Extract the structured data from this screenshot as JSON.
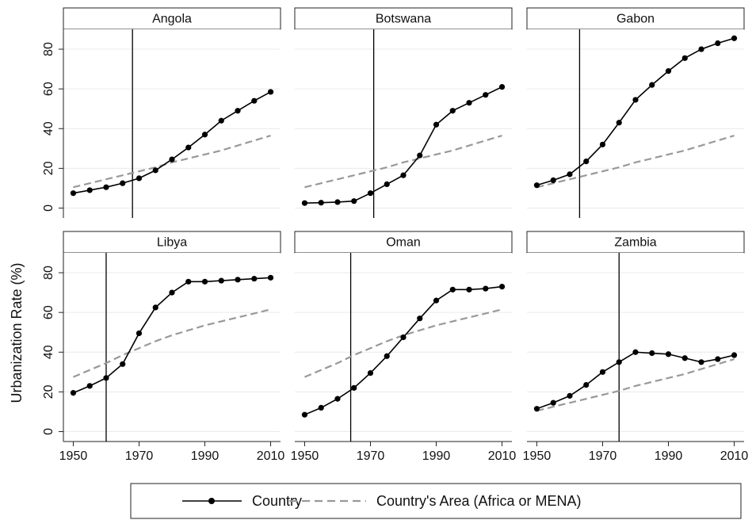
{
  "ylabel": "Urbanization Rate (%)",
  "axes": {
    "xlim": [
      1947,
      2013
    ],
    "xticks": [
      1950,
      1970,
      1990,
      2010
    ],
    "ylim": [
      -5,
      90
    ],
    "yticks": [
      0,
      20,
      40,
      60,
      80
    ],
    "grid": true
  },
  "legend": [
    "Country",
    "Country's Area (Africa or MENA)"
  ],
  "chart_data": [
    {
      "type": "line",
      "title": "Angola",
      "x": [
        1950,
        1955,
        1960,
        1965,
        1970,
        1975,
        1980,
        1985,
        1990,
        1995,
        2000,
        2005,
        2010
      ],
      "vline": 1968,
      "series": [
        {
          "color": "#000000",
          "values": [
            7.5,
            9,
            10.5,
            12.5,
            15,
            19,
            24.5,
            30.5,
            37,
            44,
            49,
            54,
            58.5
          ]
        },
        {
          "color": "#999999",
          "dashed": true,
          "values": [
            10.5,
            12.5,
            14.5,
            16.5,
            18.5,
            20.5,
            23,
            25,
            27,
            29,
            31.5,
            34,
            36.5
          ]
        }
      ]
    },
    {
      "type": "line",
      "title": "Botswana",
      "x": [
        1950,
        1955,
        1960,
        1965,
        1970,
        1975,
        1980,
        1985,
        1990,
        1995,
        2000,
        2005,
        2010
      ],
      "vline": 1971,
      "series": [
        {
          "color": "#000000",
          "values": [
            2.5,
            2.7,
            3,
            3.5,
            7.5,
            12,
            16.5,
            26.5,
            42,
            49,
            53,
            57,
            61
          ]
        },
        {
          "color": "#999999",
          "dashed": true,
          "values": [
            10.5,
            12.5,
            14.5,
            16.5,
            18.5,
            20.5,
            23,
            25,
            27,
            29,
            31.5,
            34,
            36.5
          ]
        }
      ]
    },
    {
      "type": "line",
      "title": "Gabon",
      "x": [
        1950,
        1955,
        1960,
        1965,
        1970,
        1975,
        1980,
        1985,
        1990,
        1995,
        2000,
        2005,
        2010
      ],
      "vline": 1963,
      "series": [
        {
          "color": "#000000",
          "values": [
            11.5,
            14,
            17,
            23.5,
            32,
            43,
            54.5,
            62,
            69,
            75.5,
            80,
            83,
            85.5
          ]
        },
        {
          "color": "#999999",
          "dashed": true,
          "values": [
            10.5,
            12.5,
            14.5,
            16.5,
            18.5,
            20.5,
            23,
            25,
            27,
            29,
            31.5,
            34,
            36.5
          ]
        }
      ]
    },
    {
      "type": "line",
      "title": "Libya",
      "x": [
        1950,
        1955,
        1960,
        1965,
        1970,
        1975,
        1980,
        1985,
        1990,
        1995,
        2000,
        2005,
        2010
      ],
      "vline": 1960,
      "series": [
        {
          "color": "#000000",
          "values": [
            19.5,
            23,
            27,
            34,
            49.5,
            62.5,
            70,
            75.5,
            75.5,
            76,
            76.5,
            77,
            77.5
          ]
        },
        {
          "color": "#999999",
          "dashed": true,
          "values": [
            27.5,
            31,
            34.5,
            38.5,
            42,
            45.5,
            48.5,
            51,
            53.5,
            55.5,
            57.5,
            59.5,
            61.5
          ]
        }
      ]
    },
    {
      "type": "line",
      "title": "Oman",
      "x": [
        1950,
        1955,
        1960,
        1965,
        1970,
        1975,
        1980,
        1985,
        1990,
        1995,
        2000,
        2005,
        2010
      ],
      "vline": 1964,
      "series": [
        {
          "color": "#000000",
          "values": [
            8.5,
            12,
            16.5,
            22,
            29.5,
            38,
            47.5,
            57,
            66,
            71.5,
            71.5,
            72,
            73
          ]
        },
        {
          "color": "#999999",
          "dashed": true,
          "values": [
            27.5,
            31,
            34.5,
            38.5,
            42,
            45.5,
            48.5,
            51,
            53.5,
            55.5,
            57.5,
            59.5,
            61.5
          ]
        }
      ]
    },
    {
      "type": "line",
      "title": "Zambia",
      "x": [
        1950,
        1955,
        1960,
        1965,
        1970,
        1975,
        1980,
        1985,
        1990,
        1995,
        2000,
        2005,
        2010
      ],
      "vline": 1975,
      "series": [
        {
          "color": "#000000",
          "values": [
            11.5,
            14.5,
            18,
            23.5,
            30,
            35,
            40,
            39.5,
            39,
            37,
            35,
            36.5,
            38.5
          ]
        },
        {
          "color": "#999999",
          "dashed": true,
          "values": [
            10.5,
            12.5,
            14.5,
            16.5,
            18.5,
            20.5,
            23,
            25,
            27,
            29,
            31.5,
            34,
            36.5
          ]
        }
      ]
    }
  ]
}
